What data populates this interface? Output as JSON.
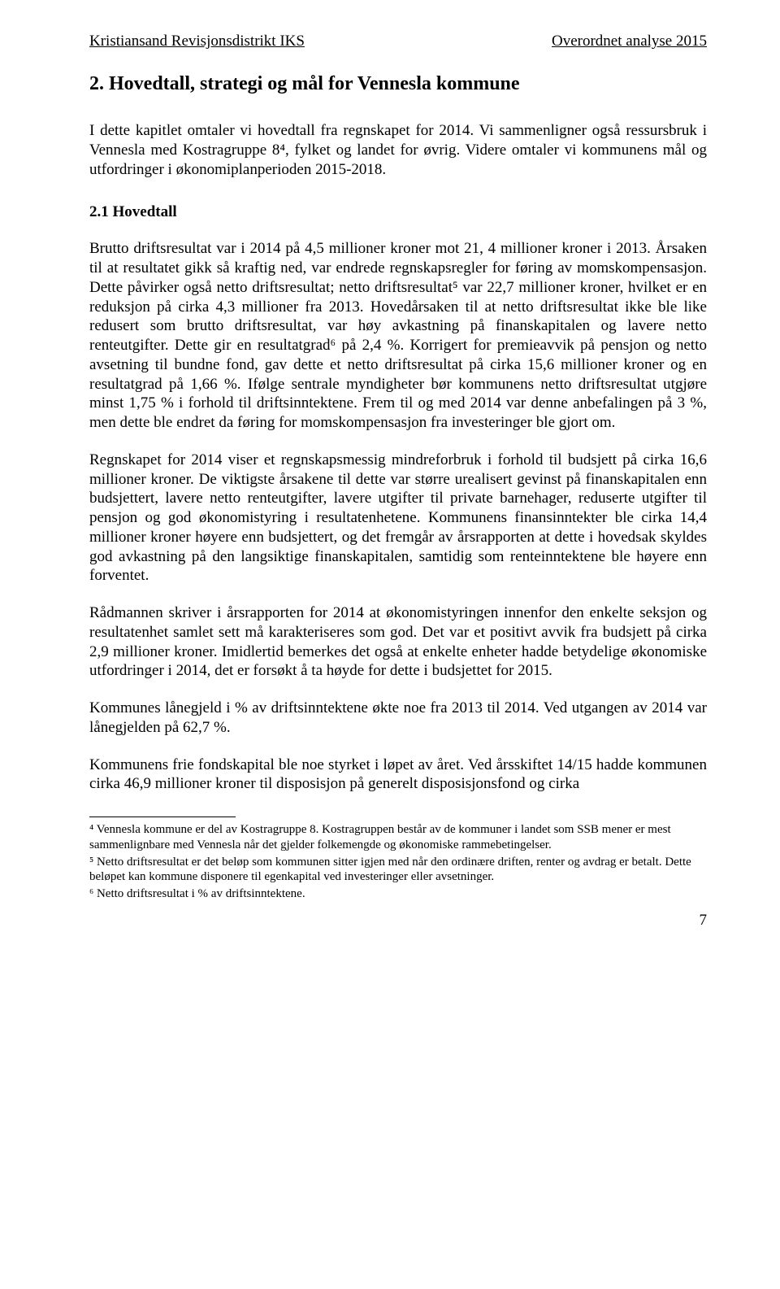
{
  "header": {
    "left": "Kristiansand Revisjonsdistrikt IKS",
    "right": "Overordnet analyse 2015"
  },
  "section_title": "2. Hovedtall, strategi og mål for Vennesla kommune",
  "intro": "I dette kapitlet omtaler vi hovedtall fra regnskapet for 2014. Vi sammenligner også ressursbruk i Vennesla med Kostragruppe 8⁴, fylket og landet for øvrig. Videre omtaler vi kommunens mål og utfordringer i økonomiplanperioden 2015-2018.",
  "sub_title": "2.1 Hovedtall",
  "p1": "Brutto driftsresultat var i 2014 på 4,5 millioner kroner mot 21, 4 millioner kroner i 2013. Årsaken til at resultatet gikk så kraftig ned, var endrede regnskapsregler for føring av momskompensasjon. Dette påvirker også netto driftsresultat; netto driftsresultat⁵ var 22,7 millioner kroner, hvilket er en reduksjon på cirka 4,3 millioner fra 2013. Hovedårsaken til at netto driftsresultat ikke ble like redusert som brutto driftsresultat, var høy avkastning på finanskapitalen og lavere netto renteutgifter. Dette gir en resultatgrad⁶ på 2,4 %. Korrigert for premieavvik på pensjon og netto avsetning til bundne fond, gav dette et netto driftsresultat på cirka 15,6 millioner kroner og en resultatgrad på 1,66 %. Ifølge sentrale myndigheter bør kommunens netto driftsresultat utgjøre minst 1,75 % i forhold til driftsinntektene. Frem til og med 2014 var denne anbefalingen på 3 %, men dette ble endret da føring for momskompensasjon fra investeringer ble gjort om.",
  "p2": "Regnskapet for 2014 viser et regnskapsmessig mindreforbruk i forhold til budsjett på cirka 16,6 millioner kroner. De viktigste årsakene til dette var større urealisert gevinst på finanskapitalen enn budsjettert, lavere netto renteutgifter, lavere utgifter til private barnehager, reduserte utgifter til pensjon og god økonomistyring i resultatenhetene. Kommunens finansinntekter ble cirka 14,4 millioner kroner høyere enn budsjettert, og det fremgår av årsrapporten at dette i hovedsak skyldes god avkastning på den langsiktige finanskapitalen, samtidig som renteinntektene ble høyere enn forventet.",
  "p3": "Rådmannen skriver i årsrapporten for 2014 at økonomistyringen innenfor den enkelte seksjon og resultatenhet samlet sett må karakteriseres som god. Det var et positivt avvik fra budsjett på cirka 2,9 millioner kroner. Imidlertid bemerkes det også at enkelte enheter hadde betydelige økonomiske utfordringer i 2014, det er forsøkt å ta høyde for dette i budsjettet for 2015.",
  "p4": "Kommunes lånegjeld i % av driftsinntektene økte noe fra 2013 til 2014. Ved utgangen av 2014 var lånegjelden på 62,7 %.",
  "p5": "Kommunens frie fondskapital ble noe styrket i løpet av året. Ved årsskiftet 14/15 hadde kommunen cirka 46,9 millioner kroner til disposisjon på generelt disposisjonsfond og cirka",
  "footnotes": {
    "fn4": "⁴ Vennesla kommune er del av Kostragruppe 8. Kostragruppen består av de kommuner i landet som SSB mener er mest sammenlignbare med Vennesla når det gjelder folkemengde og økonomiske rammebetingelser.",
    "fn5": "⁵ Netto driftsresultat er det beløp som kommunen sitter igjen med når den ordinære driften, renter og avdrag er betalt. Dette beløpet kan kommune disponere til egenkapital ved investeringer eller avsetninger.",
    "fn6": "⁶ Netto driftsresultat i % av driftsinntektene."
  },
  "page_number": "7"
}
